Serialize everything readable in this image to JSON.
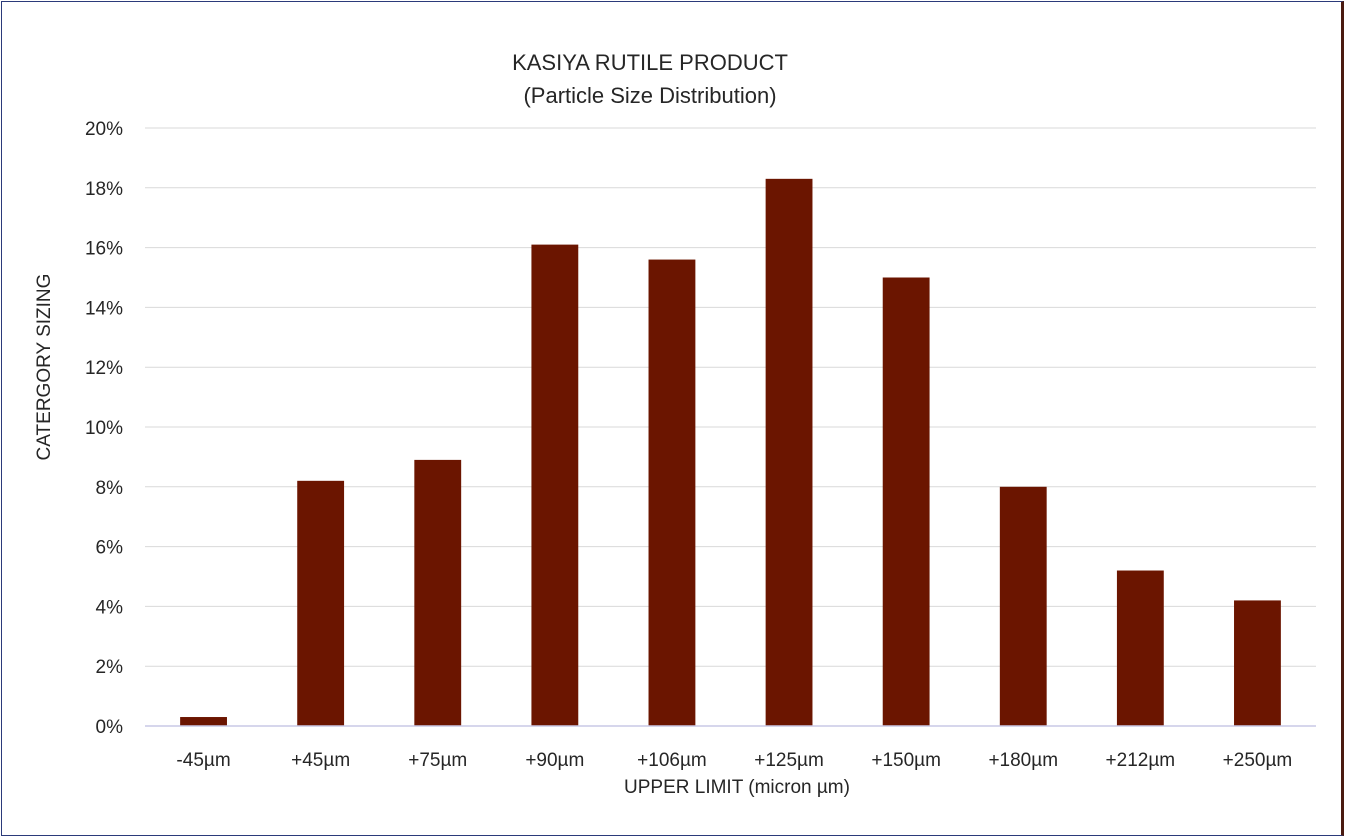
{
  "chart_data": {
    "type": "bar",
    "title": "KASIYA RUTILE PRODUCT",
    "subtitle": "(Particle Size Distribution)",
    "xlabel": "UPPER LIMIT (micron µm)",
    "ylabel": "CATERGORY SIZING",
    "categories": [
      "-45µm",
      "+45µm",
      "+75µm",
      "+90µm",
      "+106µm",
      "+125µm",
      "+150µm",
      "+180µm",
      "+212µm",
      "+250µm"
    ],
    "values": [
      0.3,
      8.2,
      8.9,
      16.1,
      15.6,
      18.3,
      15.0,
      8.0,
      5.2,
      4.2
    ],
    "ylim": [
      0,
      20
    ],
    "yticks": [
      "0%",
      "2%",
      "4%",
      "6%",
      "8%",
      "10%",
      "12%",
      "14%",
      "16%",
      "18%",
      "20%"
    ],
    "grid": true,
    "bar_color": "#6b1500"
  }
}
